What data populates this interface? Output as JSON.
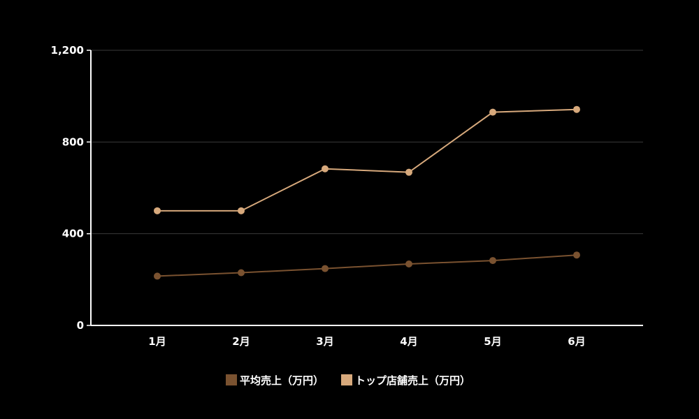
{
  "chart_data": {
    "type": "line",
    "categories": [
      "1月",
      "2月",
      "3月",
      "4月",
      "5月",
      "6月"
    ],
    "series": [
      {
        "name": "平均売上（万円）",
        "values": [
          215,
          230,
          248,
          268,
          283,
          307
        ],
        "color": "#7a5230"
      },
      {
        "name": "トップ店舗売上（万円）",
        "values": [
          500,
          500,
          683,
          668,
          930,
          942
        ],
        "color": "#d7a97c"
      }
    ],
    "yticks": [
      "0",
      "400",
      "800",
      "1,200"
    ],
    "ytick_values": [
      0,
      400,
      800,
      1200
    ],
    "ylim": [
      0,
      1200
    ],
    "grid": true,
    "legend_position": "bottom"
  }
}
